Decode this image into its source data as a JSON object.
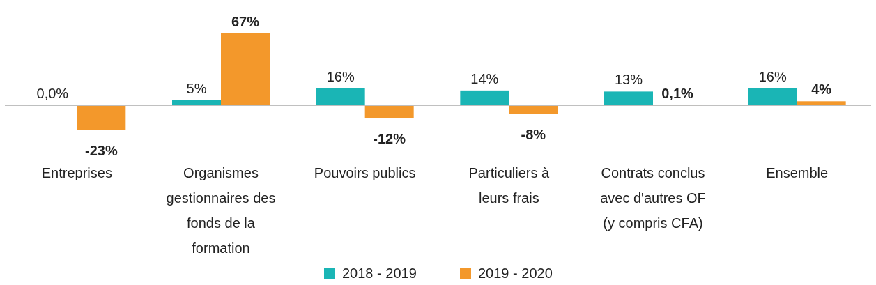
{
  "chart_data": {
    "type": "bar",
    "categories": [
      "Entreprises",
      "Organismes gestionnaires des fonds de la formation",
      "Pouvoirs publics",
      "Particuliers à leurs frais",
      "Contrats conclus avec d'autres OF (y compris CFA)",
      "Ensemble"
    ],
    "series": [
      {
        "name": "2018 - 2019",
        "color": "#1ab5b5",
        "values": [
          0.0,
          5,
          16,
          14,
          13,
          16
        ],
        "value_labels": [
          "0,0%",
          "5%",
          "16%",
          "14%",
          "13%",
          "16%"
        ]
      },
      {
        "name": "2019 - 2020",
        "color": "#f3982b",
        "values": [
          -23,
          67,
          -12,
          -8,
          0.1,
          4
        ],
        "value_labels": [
          "-23%",
          "67%",
          "-12%",
          "-8%",
          "0,1%",
          "4%"
        ]
      }
    ],
    "legend": "bottom"
  }
}
